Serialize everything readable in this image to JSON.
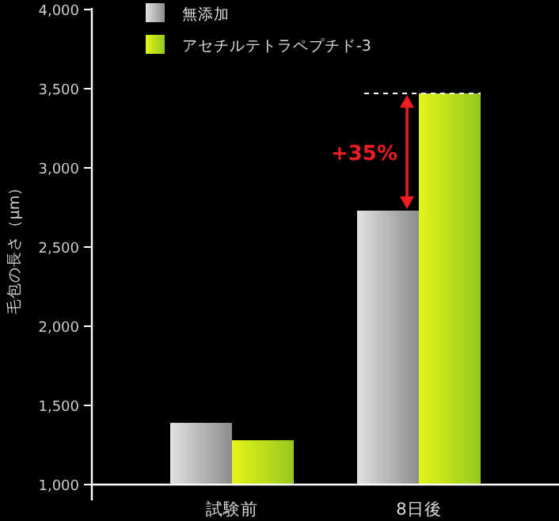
{
  "chart_data": {
    "type": "bar",
    "ylabel": "毛包の長さ（μm）",
    "categories": [
      "試験前",
      "8日後"
    ],
    "series": [
      {
        "name": "無添加",
        "color": "#8c8c8c",
        "values": [
          1390,
          2730
        ]
      },
      {
        "name": "アセチルテトラペプチド-3",
        "color": "#94c81e",
        "values": [
          1280,
          3470
        ]
      }
    ],
    "ylim": [
      1000,
      4000
    ],
    "yticks": [
      {
        "value": 1000,
        "label": "1,000"
      },
      {
        "value": 1500,
        "label": "1,500"
      },
      {
        "value": 2000,
        "label": "2,000"
      },
      {
        "value": 2500,
        "label": "2,500"
      },
      {
        "value": 3000,
        "label": "3,000"
      },
      {
        "value": 3500,
        "label": "3,500"
      },
      {
        "value": 4000,
        "label": "4,000"
      }
    ],
    "ref_lines": [
      {
        "axis": "y",
        "value": 3470,
        "color": "#ffffff",
        "line_style": "dashed"
      }
    ],
    "annotations": [
      {
        "text": "+35%",
        "x": "8日後",
        "y": 3100
      }
    ],
    "legend": "top left",
    "grid": false
  }
}
